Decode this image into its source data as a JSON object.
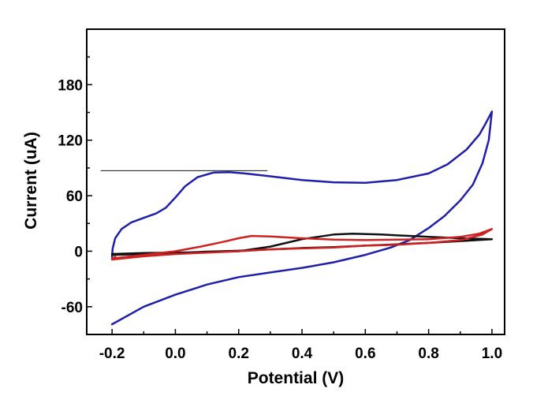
{
  "chart_data": {
    "type": "line",
    "title": "",
    "xlabel": "Potential (V)",
    "ylabel": "Current (uA)",
    "xlim": [
      -0.28,
      1.04
    ],
    "ylim": [
      -90,
      240
    ],
    "xticks": [
      -0.2,
      0.0,
      0.2,
      0.4,
      0.6,
      0.8,
      1.0
    ],
    "xtick_labels": [
      "-0.2",
      "0.0",
      "0.2",
      "0.4",
      "0.6",
      "0.8",
      "1.0"
    ],
    "yticks": [
      -60,
      0,
      60,
      120,
      180
    ],
    "ytick_labels": [
      "-60",
      "0",
      "60",
      "120",
      "180"
    ],
    "grid": false,
    "legend": "none",
    "series": [
      {
        "color": "#1f1fa8",
        "points": [
          [
            -0.2,
            -6
          ],
          [
            -0.198,
            3
          ],
          [
            -0.19,
            14
          ],
          [
            -0.17,
            24
          ],
          [
            -0.14,
            31
          ],
          [
            -0.1,
            36
          ],
          [
            -0.06,
            41
          ],
          [
            -0.03,
            47
          ],
          [
            0.0,
            58
          ],
          [
            0.03,
            70
          ],
          [
            0.07,
            80
          ],
          [
            0.12,
            85
          ],
          [
            0.17,
            85.5
          ],
          [
            0.22,
            84
          ],
          [
            0.3,
            81
          ],
          [
            0.4,
            77
          ],
          [
            0.5,
            74.5
          ],
          [
            0.6,
            74
          ],
          [
            0.7,
            77
          ],
          [
            0.8,
            84
          ],
          [
            0.86,
            94
          ],
          [
            0.92,
            110
          ],
          [
            0.96,
            126
          ],
          [
            0.98,
            138
          ],
          [
            1.0,
            151
          ],
          [
            0.99,
            120
          ],
          [
            0.97,
            95
          ],
          [
            0.94,
            72
          ],
          [
            0.9,
            55
          ],
          [
            0.85,
            38
          ],
          [
            0.8,
            25
          ],
          [
            0.74,
            12
          ],
          [
            0.68,
            4
          ],
          [
            0.6,
            -4
          ],
          [
            0.5,
            -12
          ],
          [
            0.4,
            -18
          ],
          [
            0.3,
            -23
          ],
          [
            0.2,
            -28
          ],
          [
            0.1,
            -36
          ],
          [
            0.0,
            -47
          ],
          [
            -0.1,
            -60
          ],
          [
            -0.2,
            -79
          ]
        ]
      },
      {
        "color": "#111111",
        "points": [
          [
            -0.2,
            -3
          ],
          [
            -0.1,
            -2
          ],
          [
            0.0,
            -1.5
          ],
          [
            0.1,
            -1
          ],
          [
            0.2,
            0
          ],
          [
            0.3,
            5
          ],
          [
            0.4,
            13
          ],
          [
            0.5,
            18
          ],
          [
            0.56,
            19
          ],
          [
            0.65,
            18
          ],
          [
            0.8,
            15.5
          ],
          [
            0.9,
            14
          ],
          [
            1.0,
            13
          ],
          [
            0.9,
            11
          ],
          [
            0.8,
            9
          ],
          [
            0.7,
            7.5
          ],
          [
            0.6,
            6
          ],
          [
            0.5,
            4.5
          ],
          [
            0.4,
            3.5
          ],
          [
            0.3,
            2
          ],
          [
            0.2,
            0.5
          ],
          [
            0.1,
            -0.5
          ],
          [
            0.0,
            -2
          ],
          [
            -0.1,
            -3
          ],
          [
            -0.2,
            -4
          ]
        ]
      },
      {
        "color": "#cc2222",
        "points": [
          [
            -0.2,
            -8
          ],
          [
            -0.1,
            -4
          ],
          [
            0.0,
            0
          ],
          [
            0.08,
            5
          ],
          [
            0.15,
            10
          ],
          [
            0.2,
            14
          ],
          [
            0.24,
            16.5
          ],
          [
            0.3,
            16
          ],
          [
            0.4,
            14
          ],
          [
            0.5,
            12.5
          ],
          [
            0.6,
            12
          ],
          [
            0.7,
            12.5
          ],
          [
            0.8,
            13
          ],
          [
            0.9,
            15.5
          ],
          [
            0.96,
            19
          ],
          [
            1.0,
            24
          ],
          [
            0.97,
            18
          ],
          [
            0.9,
            12
          ],
          [
            0.8,
            9
          ],
          [
            0.7,
            7
          ],
          [
            0.6,
            6
          ],
          [
            0.5,
            4
          ],
          [
            0.4,
            3
          ],
          [
            0.3,
            2
          ],
          [
            0.2,
            0
          ],
          [
            0.1,
            -1.5
          ],
          [
            0.0,
            -3
          ],
          [
            -0.1,
            -5.5
          ],
          [
            -0.2,
            -9
          ],
          [
            -0.19,
            -6
          ]
        ]
      },
      {
        "color": "#111111",
        "points": [
          [
            -0.235,
            87
          ],
          [
            0.29,
            87
          ]
        ]
      }
    ]
  }
}
